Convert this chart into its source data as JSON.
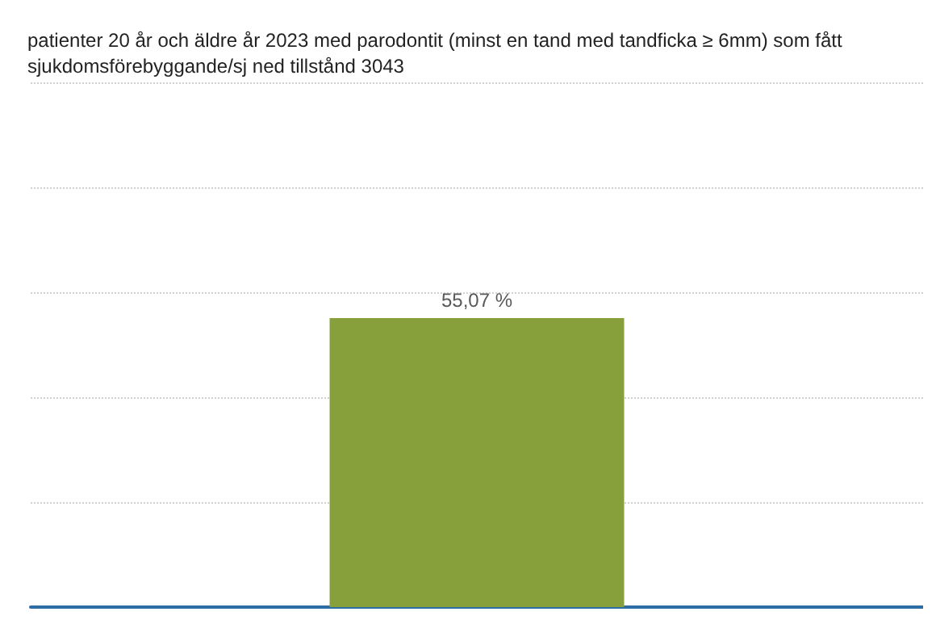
{
  "chart_data": {
    "type": "bar",
    "title": "patienter 20 år och äldre år 2023 med parodontit (minst en tand med tandficka ≥ 6mm) som fått sjukdomsförebyggande/sj ned tillstånd 3043",
    "categories": [
      null
    ],
    "values": [
      55.07
    ],
    "value_labels": [
      "55,07 %"
    ],
    "color": "#88a03c",
    "ylim": [
      0,
      100
    ],
    "yticks": [
      {
        "value": 0,
        "label": null
      },
      {
        "value": 20,
        "label": null
      },
      {
        "value": 40,
        "label": null
      },
      {
        "value": 60,
        "label": null
      },
      {
        "value": 80,
        "label": null
      },
      {
        "value": 100,
        "label": null
      }
    ],
    "grid": "y"
  }
}
